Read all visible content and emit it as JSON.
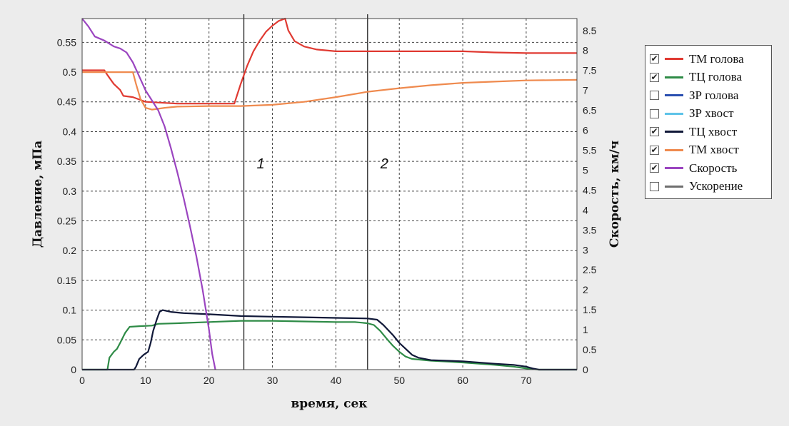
{
  "chart_data": {
    "type": "line",
    "xlabel": "время, сек",
    "ylabel_left": "Давление, мПа",
    "ylabel_right": "Скорость, км/ч",
    "xlim": [
      0,
      78
    ],
    "ylim_left": [
      0,
      0.59
    ],
    "ylim_right": [
      0,
      8.8
    ],
    "x_ticks": [
      0,
      10,
      20,
      30,
      40,
      50,
      60,
      70
    ],
    "y_left_ticks": [
      0,
      0.05,
      0.1,
      0.15,
      0.2,
      0.25,
      0.3,
      0.35,
      0.4,
      0.45,
      0.5,
      0.55
    ],
    "y_right_ticks": [
      0,
      0.5,
      1,
      1.5,
      2,
      2.5,
      3,
      3.5,
      4,
      4.5,
      5,
      5.5,
      6,
      6.5,
      7,
      7.5,
      8,
      8.5
    ],
    "grid": true,
    "markers": [
      {
        "x": 25.5,
        "label": "1"
      },
      {
        "x": 45,
        "label": "2"
      }
    ],
    "series": [
      {
        "name": "ТМ голова",
        "checked": true,
        "color": "#e03a32",
        "axis": "left",
        "points": [
          [
            0,
            0.503
          ],
          [
            3.5,
            0.503
          ],
          [
            4,
            0.495
          ],
          [
            5,
            0.48
          ],
          [
            6,
            0.47
          ],
          [
            6.5,
            0.46
          ],
          [
            8,
            0.458
          ],
          [
            10,
            0.45
          ],
          [
            15,
            0.447
          ],
          [
            20,
            0.447
          ],
          [
            24,
            0.447
          ],
          [
            25,
            0.48
          ],
          [
            26,
            0.51
          ],
          [
            27,
            0.535
          ],
          [
            28,
            0.553
          ],
          [
            29,
            0.568
          ],
          [
            30,
            0.578
          ],
          [
            31,
            0.586
          ],
          [
            32,
            0.59
          ],
          [
            32.5,
            0.57
          ],
          [
            33.5,
            0.552
          ],
          [
            35,
            0.543
          ],
          [
            37,
            0.538
          ],
          [
            40,
            0.535
          ],
          [
            50,
            0.535
          ],
          [
            60,
            0.535
          ],
          [
            65,
            0.533
          ],
          [
            70,
            0.532
          ],
          [
            78,
            0.532
          ]
        ]
      },
      {
        "name": "ТЦ голова",
        "checked": true,
        "color": "#2e8b46",
        "axis": "left",
        "points": [
          [
            0,
            0
          ],
          [
            4,
            0
          ],
          [
            4.3,
            0.02
          ],
          [
            5,
            0.03
          ],
          [
            5.5,
            0.035
          ],
          [
            6,
            0.045
          ],
          [
            6.8,
            0.062
          ],
          [
            7.5,
            0.072
          ],
          [
            9,
            0.073
          ],
          [
            11,
            0.074
          ],
          [
            12,
            0.077
          ],
          [
            15,
            0.078
          ],
          [
            20,
            0.08
          ],
          [
            25,
            0.082
          ],
          [
            30,
            0.082
          ],
          [
            35,
            0.081
          ],
          [
            40,
            0.08
          ],
          [
            43,
            0.08
          ],
          [
            45,
            0.078
          ],
          [
            46,
            0.075
          ],
          [
            47,
            0.065
          ],
          [
            48,
            0.052
          ],
          [
            49,
            0.04
          ],
          [
            50,
            0.03
          ],
          [
            51,
            0.022
          ],
          [
            52,
            0.018
          ],
          [
            55,
            0.015
          ],
          [
            60,
            0.012
          ],
          [
            65,
            0.008
          ],
          [
            68,
            0.005
          ],
          [
            70,
            0.002
          ],
          [
            72,
            0
          ],
          [
            78,
            0
          ]
        ]
      },
      {
        "name": "ЗР голова",
        "checked": false,
        "color": "#2a4fb0",
        "axis": "left",
        "points": []
      },
      {
        "name": "ЗР хвост",
        "checked": false,
        "color": "#5ec3e8",
        "axis": "left",
        "points": []
      },
      {
        "name": "ТЦ хвост",
        "checked": true,
        "color": "#101838",
        "axis": "left",
        "points": [
          [
            0,
            0
          ],
          [
            8.2,
            0
          ],
          [
            8.5,
            0.005
          ],
          [
            9,
            0.018
          ],
          [
            9.7,
            0.025
          ],
          [
            10.4,
            0.03
          ],
          [
            10.8,
            0.045
          ],
          [
            11.2,
            0.065
          ],
          [
            11.8,
            0.085
          ],
          [
            12.2,
            0.097
          ],
          [
            12.7,
            0.1
          ],
          [
            14,
            0.097
          ],
          [
            16,
            0.095
          ],
          [
            20,
            0.093
          ],
          [
            25,
            0.09
          ],
          [
            30,
            0.089
          ],
          [
            35,
            0.088
          ],
          [
            40,
            0.087
          ],
          [
            45,
            0.086
          ],
          [
            46.5,
            0.084
          ],
          [
            47.5,
            0.075
          ],
          [
            49,
            0.058
          ],
          [
            50,
            0.045
          ],
          [
            51,
            0.035
          ],
          [
            52,
            0.025
          ],
          [
            53,
            0.02
          ],
          [
            55,
            0.016
          ],
          [
            60,
            0.014
          ],
          [
            65,
            0.01
          ],
          [
            68,
            0.008
          ],
          [
            70,
            0.005
          ],
          [
            71,
            0.002
          ],
          [
            72,
            0
          ],
          [
            78,
            0
          ]
        ]
      },
      {
        "name": "ТМ хвост",
        "checked": true,
        "color": "#ef8a4e",
        "axis": "left",
        "points": [
          [
            0,
            0.5
          ],
          [
            4,
            0.5
          ],
          [
            8,
            0.5
          ],
          [
            8.5,
            0.48
          ],
          [
            9.2,
            0.455
          ],
          [
            10,
            0.44
          ],
          [
            11,
            0.437
          ],
          [
            13,
            0.44
          ],
          [
            15,
            0.442
          ],
          [
            20,
            0.443
          ],
          [
            25,
            0.443
          ],
          [
            30,
            0.445
          ],
          [
            35,
            0.45
          ],
          [
            40,
            0.458
          ],
          [
            45,
            0.467
          ],
          [
            50,
            0.473
          ],
          [
            55,
            0.478
          ],
          [
            60,
            0.482
          ],
          [
            65,
            0.484
          ],
          [
            70,
            0.486
          ],
          [
            78,
            0.487
          ]
        ]
      },
      {
        "name": "Скорость",
        "checked": true,
        "color": "#9b45c0",
        "axis": "right",
        "points": [
          [
            0,
            8.8
          ],
          [
            1,
            8.6
          ],
          [
            2,
            8.35
          ],
          [
            3.5,
            8.25
          ],
          [
            5,
            8.1
          ],
          [
            6,
            8.05
          ],
          [
            7,
            7.95
          ],
          [
            8,
            7.7
          ],
          [
            9,
            7.35
          ],
          [
            10,
            7.0
          ],
          [
            11,
            6.75
          ],
          [
            12,
            6.5
          ],
          [
            13,
            6.1
          ],
          [
            14,
            5.55
          ],
          [
            15,
            4.95
          ],
          [
            16,
            4.3
          ],
          [
            17,
            3.6
          ],
          [
            18,
            2.85
          ],
          [
            19,
            2.0
          ],
          [
            20,
            1.0
          ],
          [
            20.5,
            0.4
          ],
          [
            21,
            0
          ]
        ]
      },
      {
        "name": "Ускорение",
        "checked": false,
        "color": "#6e6e6e",
        "axis": "right",
        "points": []
      }
    ]
  }
}
